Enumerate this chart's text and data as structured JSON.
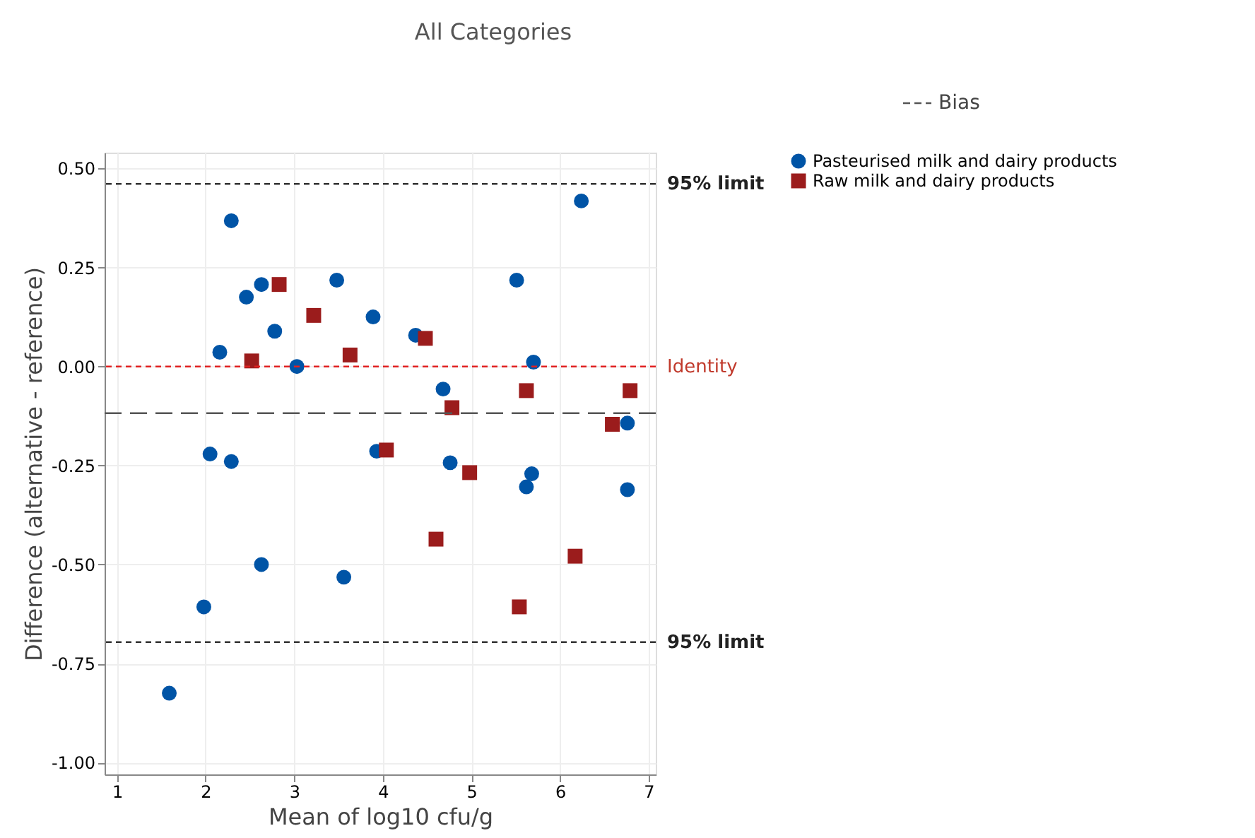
{
  "chart_data": {
    "type": "scatter",
    "title": "All Categories",
    "xlabel": "Mean of log10 cfu/g",
    "ylabel": "Difference (alternative - reference)",
    "xlim": [
      0.86,
      7.08
    ],
    "ylim": [
      -1.03,
      0.54
    ],
    "xticks": [
      1,
      2,
      3,
      4,
      5,
      6,
      7
    ],
    "yticks": [
      {
        "value": 0.5,
        "label": "0.50"
      },
      {
        "value": 0.25,
        "label": "0.25"
      },
      {
        "value": 0,
        "label": "0.00"
      },
      {
        "value": -0.25,
        "label": "-0.25"
      },
      {
        "value": -0.5,
        "label": "-0.50"
      },
      {
        "value": -0.75,
        "label": "-0.75"
      },
      {
        "value": -1,
        "label": "-1.00"
      }
    ],
    "grid": true,
    "legend": "top right",
    "series": [
      {
        "name": "Pasteurised milk and dairy products",
        "color": "#0054a6",
        "marker": "circle",
        "x": [
          1.59,
          1.98,
          2.05,
          2.16,
          2.29,
          2.29,
          2.46,
          2.63,
          2.63,
          2.78,
          3.03,
          3.48,
          3.56,
          3.89,
          3.93,
          4.37,
          4.68,
          4.76,
          5.51,
          5.62,
          5.68,
          5.7,
          6.24,
          6.76,
          6.76
        ],
        "values": [
          -0.825,
          -0.607,
          -0.221,
          0.036,
          0.368,
          -0.24,
          0.175,
          0.207,
          -0.5,
          0.089,
          0.0,
          0.218,
          -0.532,
          0.125,
          -0.214,
          0.079,
          -0.057,
          -0.243,
          0.218,
          -0.304,
          -0.271,
          0.011,
          0.418,
          -0.143,
          -0.311
        ]
      },
      {
        "name": "Raw milk and dairy products",
        "color": "#9b1c1c",
        "marker": "square",
        "x": [
          2.52,
          2.83,
          3.22,
          3.63,
          4.04,
          4.48,
          4.6,
          4.78,
          4.98,
          5.54,
          5.62,
          6.17,
          6.59,
          6.79
        ],
        "values": [
          0.014,
          0.207,
          0.129,
          0.029,
          -0.211,
          0.071,
          -0.436,
          -0.104,
          -0.268,
          -0.607,
          -0.061,
          -0.479,
          -0.146,
          -0.061
        ]
      }
    ],
    "ref_lines": [
      {
        "axis": "y",
        "value": 0.461,
        "label": "95% limit",
        "color": "#333333",
        "line_style": "dashed"
      },
      {
        "axis": "y",
        "value": 0,
        "label": "Identity",
        "color": "#e02020",
        "line_style": "dashed"
      },
      {
        "axis": "y",
        "value": -0.118,
        "label": "Bias",
        "color": "#555555",
        "line_style": "longdash"
      },
      {
        "axis": "y",
        "value": -0.696,
        "label": "95% limit",
        "color": "#333333",
        "line_style": "dashed"
      }
    ]
  }
}
